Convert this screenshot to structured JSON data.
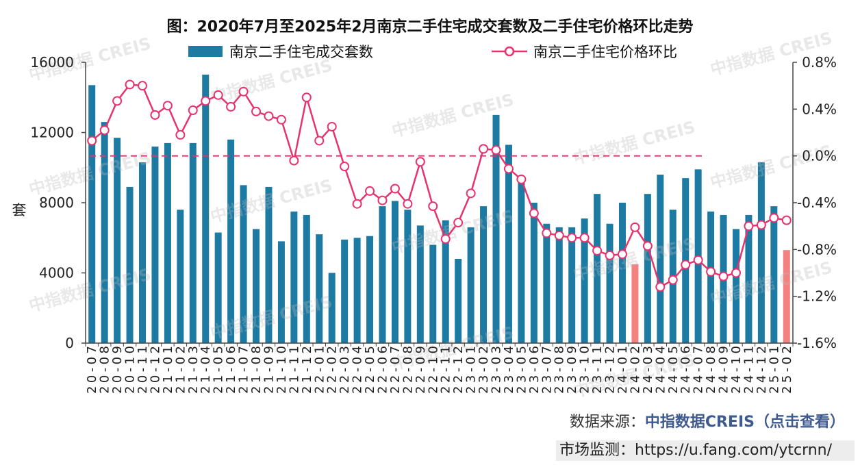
{
  "colors": {
    "bar": "#1c7aa3",
    "bar_highlight": "#f3817f",
    "line": "#e7336d",
    "source_link": "#3e5a8e"
  },
  "watermark": "中指数据 CREIS",
  "chart_data": {
    "type": "bar",
    "title": "图：2020年7月至2025年2月南京二手住宅成交套数及二手住宅价格环比走势",
    "categories": [
      "20-07",
      "20-08",
      "20-09",
      "20-10",
      "20-11",
      "20-12",
      "21-01",
      "21-02",
      "21-03",
      "21-04",
      "21-05",
      "21-06",
      "21-07",
      "21-08",
      "21-09",
      "21-10",
      "21-11",
      "21-12",
      "22-01",
      "22-02",
      "22-03",
      "22-04",
      "22-05",
      "22-06",
      "22-07",
      "22-08",
      "22-09",
      "22-10",
      "22-11",
      "22-12",
      "23-01",
      "23-02",
      "23-03",
      "23-04",
      "23-05",
      "23-06",
      "23-07",
      "23-08",
      "23-09",
      "23-10",
      "23-11",
      "23-12",
      "24-01",
      "24-02",
      "24-03",
      "24-04",
      "24-05",
      "24-06",
      "24-07",
      "24-08",
      "24-09",
      "24-10",
      "24-11",
      "24-12",
      "25-01",
      "25-02"
    ],
    "series": [
      {
        "name": "南京二手住宅成交套数",
        "type": "bar",
        "values": [
          14700,
          12600,
          11700,
          8900,
          10300,
          11200,
          11400,
          7600,
          11400,
          15300,
          6300,
          11600,
          9000,
          6500,
          8900,
          5800,
          7500,
          7300,
          6200,
          4000,
          5900,
          6000,
          6100,
          7800,
          8100,
          7600,
          6700,
          5600,
          7000,
          4800,
          6600,
          7800,
          13000,
          11300,
          9200,
          8000,
          6800,
          6600,
          6600,
          7100,
          8500,
          6800,
          8000,
          4500,
          8500,
          9600,
          7600,
          9400,
          9900,
          7500,
          7300,
          6500,
          7300,
          10300,
          7800,
          5300
        ],
        "highlight": [
          "24-02",
          "25-02"
        ]
      },
      {
        "name": "南京二手住宅价格环比",
        "type": "line",
        "values": [
          0.13,
          0.22,
          0.47,
          0.61,
          0.6,
          0.35,
          0.43,
          0.18,
          0.39,
          0.47,
          0.52,
          0.42,
          0.55,
          0.38,
          0.34,
          0.31,
          -0.04,
          0.5,
          0.13,
          0.25,
          -0.09,
          -0.41,
          -0.3,
          -0.38,
          -0.28,
          -0.41,
          -0.05,
          -0.43,
          -0.71,
          -0.57,
          -0.32,
          0.06,
          0.05,
          -0.11,
          -0.2,
          -0.49,
          -0.66,
          -0.68,
          -0.7,
          -0.7,
          -0.81,
          -0.85,
          -0.84,
          -0.61,
          -0.77,
          -1.12,
          -1.06,
          -0.93,
          -0.89,
          -0.99,
          -1.03,
          -1.0,
          -0.6,
          -0.59,
          -0.53,
          -0.55
        ]
      }
    ],
    "ylabel": "套",
    "ylim": [
      0,
      16000
    ],
    "yticks": [
      0,
      4000,
      8000,
      12000,
      16000
    ],
    "y2lim": [
      -1.6,
      0.8
    ],
    "y2ticks": [
      "0.8%",
      "0.4%",
      "0.0%",
      "-0.4%",
      "-0.8%",
      "-1.2%",
      "-1.6%"
    ],
    "reference_line": 0.0,
    "grid": false,
    "legend_position": "top"
  },
  "footer": {
    "source_label": "数据来源：",
    "source_link": "中指数据CREIS（点击查看）",
    "monitor_label": "市场监测：",
    "monitor_url": "https://u.fang.com/ytcrnn/"
  }
}
